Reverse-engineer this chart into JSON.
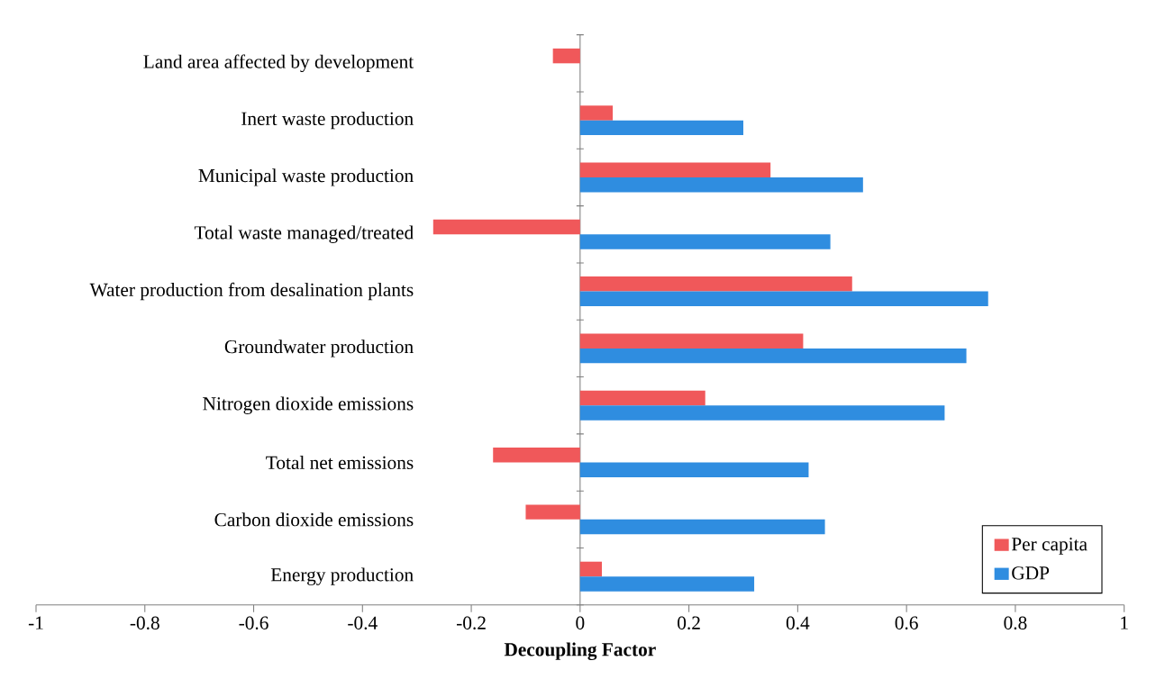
{
  "chart_data": {
    "type": "bar",
    "orientation": "horizontal",
    "xlabel": "Decoupling Factor",
    "categories": [
      "Land area affected by development",
      "Inert waste production",
      "Municipal waste production",
      "Total waste managed/treated",
      "Water production from desalination plants",
      "Groundwater production",
      "Nitrogen dioxide emissions",
      "Total net emissions",
      "Carbon dioxide emissions",
      "Energy production"
    ],
    "series": [
      {
        "name": "Per capita",
        "color": "#f0585a",
        "values": [
          -0.05,
          0.06,
          0.35,
          -0.27,
          0.5,
          0.41,
          0.23,
          -0.16,
          -0.1,
          0.04
        ]
      },
      {
        "name": "GDP",
        "color": "#2f8de0",
        "values": [
          null,
          0.3,
          0.52,
          0.46,
          0.75,
          0.71,
          0.67,
          0.42,
          0.45,
          0.32
        ]
      }
    ],
    "xlim": [
      -1,
      1
    ],
    "xticks": [
      -1,
      -0.8,
      -0.6,
      -0.4,
      -0.2,
      0,
      0.2,
      0.4,
      0.6,
      0.8,
      1
    ],
    "legend": "bottom right"
  }
}
